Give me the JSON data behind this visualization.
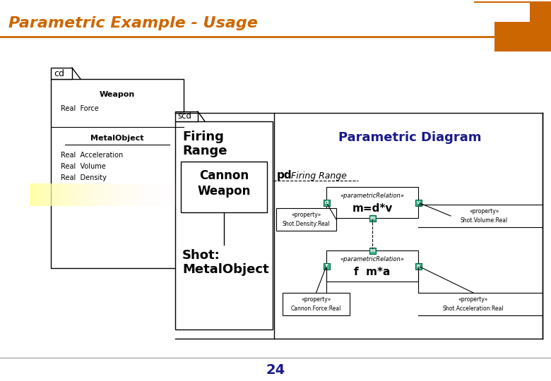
{
  "title": "Parametric Example - Usage",
  "title_color": "#CC6600",
  "title_fontsize": 16,
  "page_number": "24",
  "page_number_color": "#1a1a8c",
  "page_number_fontsize": 14,
  "bg_color": "#ffffff",
  "corner_rect_color": "#CC6600",
  "line_color": "#000000",
  "separator_line_color": "#CC6600",
  "parametric_diagram_text": "Parametric Diagram",
  "parametric_diagram_color": "#1a1a8c",
  "cd_label": "cd",
  "scd_label": "scd",
  "pd_label": "pd",
  "weapon_label": "Weapon",
  "real_force_label": "Real  Force",
  "metal_object_label": "MetalObject",
  "real_acceleration_label": "Real  Acceleration",
  "real_volume_label": "Real  Volume",
  "real_density_label": "Real  Density",
  "firing_range_label": "Firing\nRange",
  "cannon_weapon_label": "Cannon\nWeapon",
  "shot_metalobject_label": "Shot:\nMetalObject",
  "pd_firing_range_label": "Firing Range",
  "mdeqv_label": "m=d*v",
  "fmeqa_label": "f  m*a",
  "sparametric_relation1": "«parametricRelation»",
  "sparametric_relation2": "«parametricRelation»",
  "property_shot_density": "«property»\nShot.Density:Real",
  "property_shot_volume": "«property»\nShot.Volume:Real",
  "property_cannon_force": "«property»\nCannon.Force:Real",
  "property_shot_acceleration": "«property»\nShot.Acceleration:Real",
  "teal_color": "#3db88a",
  "node_labels": [
    "d",
    "v",
    "m",
    "m",
    "f",
    "a"
  ]
}
